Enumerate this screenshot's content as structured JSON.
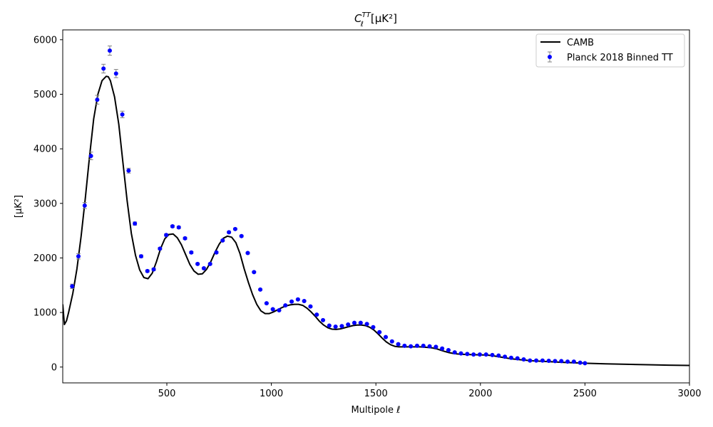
{
  "chart_data": {
    "type": "line",
    "title": "C_ℓ^TT [μK²]",
    "title_parts": {
      "main": "C",
      "sub": "ℓ",
      "sup": "TT",
      "units": "[μK²]"
    },
    "xlabel": "Multipole ℓ",
    "ylabel": "[μK²]",
    "xlim": [
      2,
      3000
    ],
    "ylim": [
      -290,
      6180
    ],
    "xticks": [
      500,
      1000,
      1500,
      2000,
      2500,
      3000
    ],
    "xtick_labels": [
      "500",
      "1000",
      "1500",
      "2000",
      "2500",
      "3000"
    ],
    "yticks": [
      0,
      1000,
      2000,
      3000,
      4000,
      5000,
      6000
    ],
    "ytick_labels": [
      "0",
      "1000",
      "2000",
      "3000",
      "4000",
      "5000",
      "6000"
    ],
    "grid": false,
    "legend": {
      "position": "top-right",
      "entries": [
        "CAMB",
        "Planck 2018 Binned TT"
      ]
    },
    "series": [
      {
        "name": "CAMB",
        "kind": "line",
        "color": "#000000",
        "x": [
          2,
          10,
          20,
          30,
          50,
          70,
          90,
          110,
          130,
          150,
          170,
          190,
          210,
          220,
          230,
          250,
          270,
          290,
          310,
          330,
          350,
          370,
          390,
          410,
          430,
          450,
          470,
          490,
          510,
          530,
          550,
          570,
          590,
          610,
          630,
          650,
          670,
          690,
          710,
          730,
          750,
          770,
          790,
          810,
          830,
          850,
          870,
          890,
          910,
          930,
          950,
          970,
          990,
          1010,
          1030,
          1050,
          1070,
          1090,
          1110,
          1130,
          1150,
          1170,
          1190,
          1210,
          1230,
          1250,
          1270,
          1290,
          1310,
          1330,
          1350,
          1370,
          1390,
          1410,
          1430,
          1450,
          1470,
          1490,
          1510,
          1530,
          1550,
          1570,
          1590,
          1610,
          1630,
          1650,
          1670,
          1690,
          1710,
          1730,
          1750,
          1770,
          1790,
          1810,
          1830,
          1850,
          1870,
          1890,
          1910,
          1930,
          1950,
          1970,
          1990,
          2010,
          2030,
          2050,
          2070,
          2090,
          2110,
          2150,
          2200,
          2250,
          2300,
          2350,
          2400,
          2450,
          2500,
          2600,
          2700,
          2800,
          2900,
          3000
        ],
        "y": [
          1150,
          780,
          850,
          1000,
          1350,
          1800,
          2400,
          3100,
          3850,
          4550,
          5000,
          5250,
          5330,
          5320,
          5250,
          4950,
          4450,
          3750,
          3050,
          2450,
          2050,
          1780,
          1640,
          1620,
          1720,
          1930,
          2170,
          2350,
          2430,
          2440,
          2370,
          2240,
          2060,
          1880,
          1760,
          1700,
          1710,
          1790,
          1930,
          2100,
          2250,
          2360,
          2400,
          2380,
          2280,
          2080,
          1800,
          1550,
          1330,
          1150,
          1030,
          980,
          980,
          1010,
          1050,
          1090,
          1120,
          1140,
          1150,
          1150,
          1130,
          1080,
          1010,
          930,
          840,
          770,
          720,
          695,
          690,
          700,
          720,
          740,
          760,
          770,
          770,
          760,
          730,
          680,
          610,
          530,
          460,
          410,
          380,
          370,
          370,
          370,
          370,
          370,
          370,
          365,
          360,
          350,
          335,
          310,
          285,
          265,
          250,
          240,
          235,
          230,
          228,
          226,
          224,
          222,
          220,
          212,
          200,
          188,
          175,
          150,
          130,
          115,
          105,
          95,
          85,
          78,
          70,
          60,
          50,
          42,
          35,
          30
        ]
      },
      {
        "name": "Planck 2018 Binned TT",
        "kind": "errorbar",
        "color": "#0000ff",
        "errcolor": "#808080",
        "x": [
          47,
          77,
          107,
          137,
          167,
          197,
          227,
          257,
          287,
          317,
          347,
          377,
          407,
          437,
          467,
          497,
          527,
          557,
          587,
          617,
          647,
          677,
          707,
          737,
          767,
          797,
          827,
          857,
          887,
          917,
          947,
          977,
          1007,
          1037,
          1067,
          1097,
          1127,
          1157,
          1187,
          1217,
          1247,
          1277,
          1307,
          1337,
          1367,
          1397,
          1427,
          1457,
          1487,
          1517,
          1547,
          1577,
          1607,
          1637,
          1667,
          1697,
          1727,
          1757,
          1787,
          1817,
          1847,
          1877,
          1907,
          1937,
          1967,
          1997,
          2027,
          2057,
          2087,
          2117,
          2147,
          2177,
          2207,
          2237,
          2267,
          2297,
          2327,
          2357,
          2387,
          2417,
          2447,
          2477,
          2500
        ],
        "y": [
          1480,
          2030,
          2960,
          3870,
          4900,
          5470,
          5800,
          5380,
          4630,
          3600,
          2630,
          2030,
          1760,
          1790,
          2170,
          2420,
          2580,
          2560,
          2360,
          2100,
          1890,
          1810,
          1890,
          2100,
          2320,
          2470,
          2530,
          2400,
          2090,
          1740,
          1420,
          1170,
          1060,
          1040,
          1130,
          1200,
          1240,
          1210,
          1110,
          960,
          860,
          760,
          740,
          750,
          780,
          810,
          810,
          790,
          730,
          640,
          550,
          470,
          420,
          390,
          380,
          390,
          390,
          380,
          370,
          340,
          310,
          270,
          250,
          240,
          230,
          230,
          230,
          220,
          210,
          190,
          170,
          160,
          140,
          120,
          120,
          120,
          115,
          110,
          110,
          100,
          100,
          80,
          70
        ],
        "yerr": [
          40,
          50,
          55,
          70,
          80,
          80,
          85,
          75,
          60,
          45,
          30,
          25,
          20,
          20,
          20,
          20,
          20,
          20,
          20,
          18,
          15,
          15,
          15,
          15,
          15,
          15,
          15,
          15,
          15,
          12,
          12,
          10,
          10,
          10,
          10,
          10,
          10,
          10,
          10,
          10,
          8,
          8,
          8,
          8,
          8,
          8,
          8,
          8,
          8,
          8,
          8,
          8,
          8,
          8,
          8,
          8,
          8,
          8,
          8,
          8,
          8,
          8,
          8,
          8,
          8,
          8,
          8,
          8,
          8,
          8,
          8,
          8,
          8,
          8,
          8,
          8,
          8,
          8,
          8,
          8,
          8,
          8,
          8
        ]
      }
    ]
  }
}
